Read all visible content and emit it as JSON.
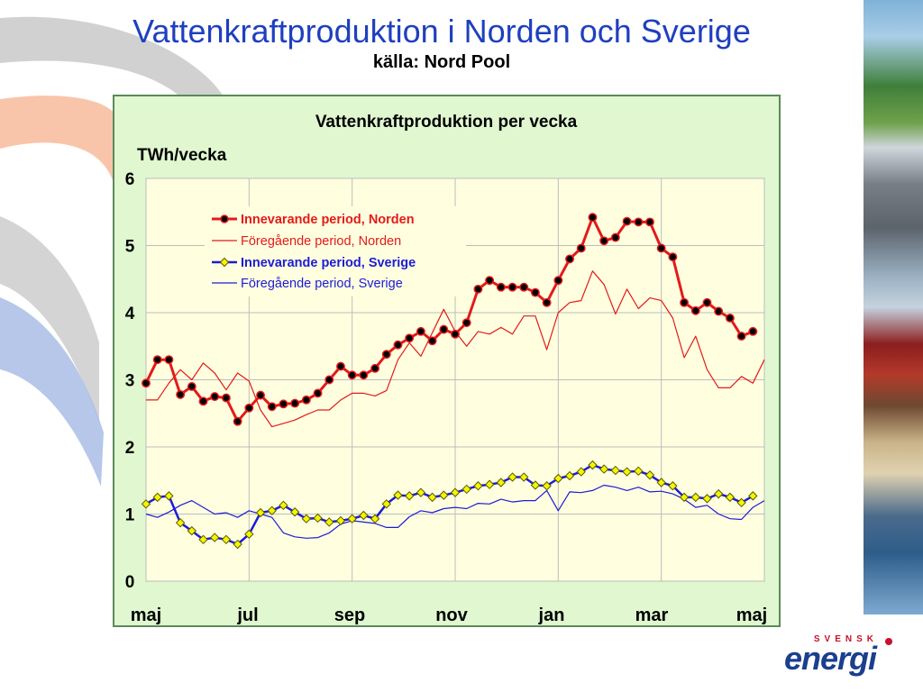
{
  "slide": {
    "title": "Vattenkraftproduktion i Norden och Sverige",
    "subtitle": "källa: Nord Pool"
  },
  "logo": {
    "top_text": "SVENSK",
    "main_text": "energi"
  },
  "colors": {
    "title_blue": "#1f3fbf",
    "chart_frame_bg": "#e0f7d0",
    "plot_bg": "#ffffe0",
    "norden_red": "#e41a1a",
    "sverige_blue": "#1c1cd6",
    "marker_yellow": "#f5f500"
  },
  "chart_data": {
    "type": "line",
    "title": "Vattenkraftproduktion per vecka",
    "ylabel": "TWh/vecka",
    "ylim": [
      0,
      6
    ],
    "yticks": [
      "0",
      "1",
      "2",
      "3",
      "4",
      "5",
      "6"
    ],
    "xticks": [
      "maj",
      "jul",
      "sep",
      "nov",
      "jan",
      "mar",
      "maj"
    ],
    "grid": true,
    "legend_position": "top-left",
    "series": [
      {
        "name": "Innevarande period, Norden",
        "style": "line-markers",
        "values": [
          2.95,
          3.3,
          3.3,
          2.78,
          2.9,
          2.68,
          2.75,
          2.73,
          2.38,
          2.58,
          2.77,
          2.6,
          2.64,
          2.65,
          2.7,
          2.8,
          3.0,
          3.2,
          3.07,
          3.07,
          3.17,
          3.38,
          3.52,
          3.62,
          3.72,
          3.58,
          3.75,
          3.68,
          3.85,
          4.35,
          4.48,
          4.38,
          4.38,
          4.38,
          4.3,
          4.15,
          4.48,
          4.8,
          4.96,
          5.42,
          5.07,
          5.12,
          5.36,
          5.35,
          5.35,
          4.96,
          4.83,
          4.15,
          4.03,
          4.15,
          4.02,
          3.92,
          3.65,
          3.72
        ]
      },
      {
        "name": "Föregående period, Norden",
        "style": "line",
        "values": [
          2.7,
          2.7,
          2.95,
          3.15,
          3.0,
          3.25,
          3.1,
          2.85,
          3.1,
          2.98,
          2.55,
          2.3,
          2.35,
          2.4,
          2.48,
          2.55,
          2.55,
          2.7,
          2.8,
          2.8,
          2.76,
          2.84,
          3.3,
          3.55,
          3.35,
          3.7,
          4.05,
          3.72,
          3.5,
          3.72,
          3.68,
          3.78,
          3.68,
          3.95,
          3.95,
          3.45,
          4.0,
          4.15,
          4.18,
          4.62,
          4.42,
          3.98,
          4.35,
          4.06,
          4.22,
          4.18,
          3.92,
          3.33,
          3.65,
          3.15,
          2.88,
          2.88,
          3.05,
          2.95,
          3.3
        ]
      },
      {
        "name": "Innevarande period, Sverige",
        "style": "line-markers",
        "values": [
          1.15,
          1.25,
          1.27,
          0.87,
          0.75,
          0.62,
          0.65,
          0.62,
          0.55,
          0.7,
          1.02,
          1.05,
          1.13,
          1.03,
          0.93,
          0.94,
          0.88,
          0.9,
          0.93,
          0.98,
          0.93,
          1.15,
          1.28,
          1.27,
          1.32,
          1.25,
          1.28,
          1.32,
          1.37,
          1.42,
          1.44,
          1.47,
          1.55,
          1.55,
          1.43,
          1.42,
          1.53,
          1.57,
          1.63,
          1.73,
          1.67,
          1.65,
          1.63,
          1.64,
          1.58,
          1.47,
          1.42,
          1.25,
          1.25,
          1.23,
          1.3,
          1.25,
          1.17,
          1.27
        ]
      },
      {
        "name": "Föregående period, Sverige",
        "style": "line",
        "values": [
          1.0,
          0.95,
          1.03,
          1.13,
          1.2,
          1.1,
          1.0,
          1.02,
          0.95,
          1.05,
          1.0,
          0.95,
          0.72,
          0.66,
          0.64,
          0.65,
          0.72,
          0.85,
          0.9,
          0.88,
          0.86,
          0.8,
          0.8,
          0.96,
          1.05,
          1.02,
          1.08,
          1.1,
          1.08,
          1.16,
          1.15,
          1.22,
          1.18,
          1.2,
          1.2,
          1.35,
          1.05,
          1.33,
          1.32,
          1.35,
          1.43,
          1.4,
          1.35,
          1.4,
          1.33,
          1.34,
          1.3,
          1.22,
          1.1,
          1.13,
          1.0,
          0.93,
          0.92,
          1.1,
          1.2
        ]
      }
    ]
  }
}
